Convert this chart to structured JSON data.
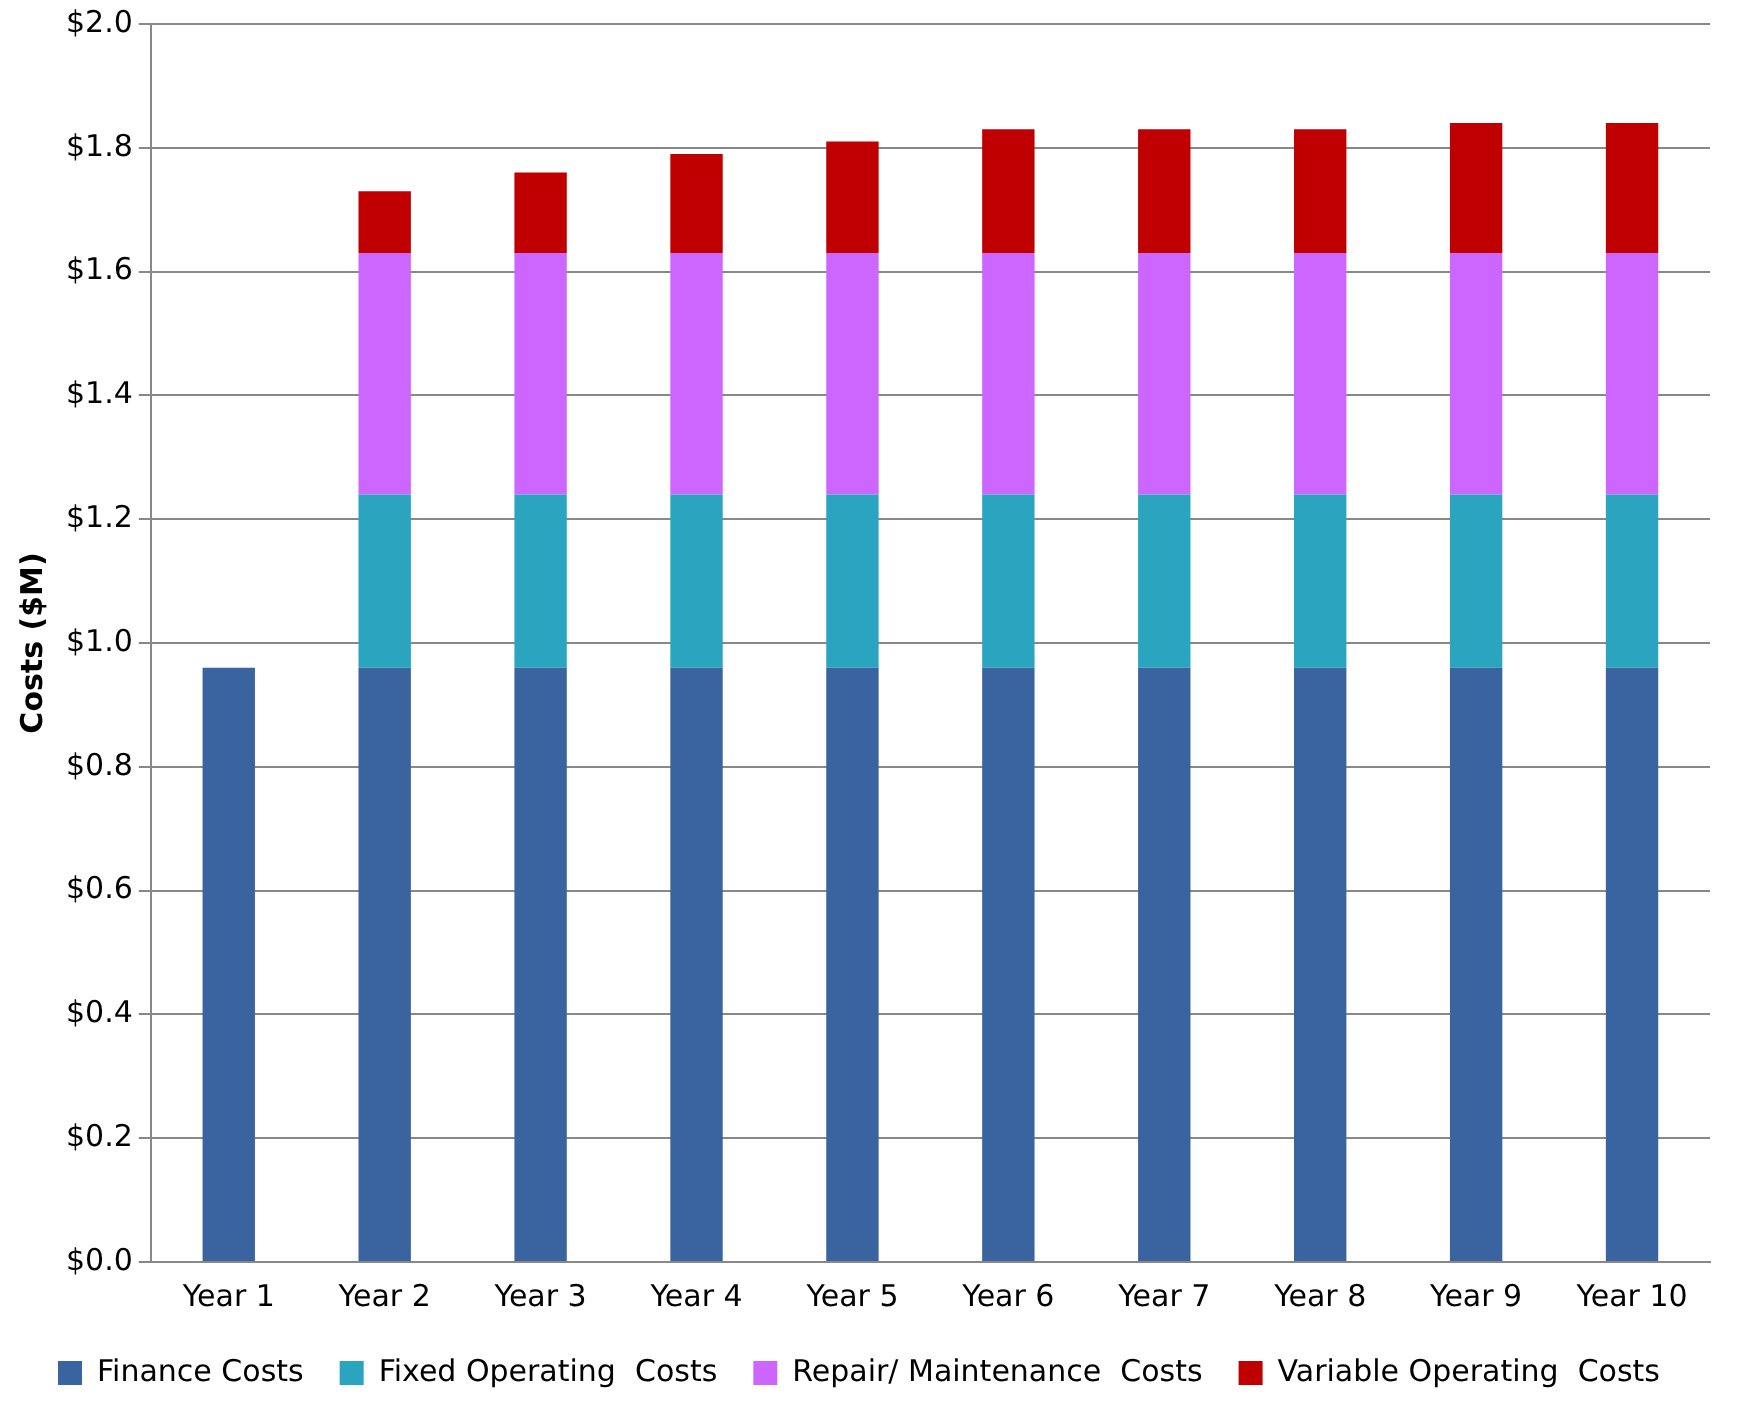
{
  "chart_data": {
    "type": "bar",
    "stacked": true,
    "ylabel": "Costs ($M)",
    "categories": [
      "Year 1",
      "Year 2",
      "Year 3",
      "Year 4",
      "Year 5",
      "Year 6",
      "Year 7",
      "Year 8",
      "Year 9",
      "Year 10"
    ],
    "series": [
      {
        "name": "Finance Costs",
        "color": "#3a64a0",
        "values": [
          0.96,
          0.96,
          0.96,
          0.96,
          0.96,
          0.96,
          0.96,
          0.96,
          0.96,
          0.96
        ]
      },
      {
        "name": "Fixed Operating  Costs",
        "color": "#2ba4c0",
        "values": [
          null,
          0.28,
          0.28,
          0.28,
          0.28,
          0.28,
          0.28,
          0.28,
          0.28,
          0.28
        ]
      },
      {
        "name": "Repair/ Maintenance  Costs",
        "color": "#cc66ff",
        "values": [
          null,
          0.39,
          0.39,
          0.39,
          0.39,
          0.39,
          0.39,
          0.39,
          0.39,
          0.39
        ]
      },
      {
        "name": "Variable Operating  Costs",
        "color": "#c00000",
        "values": [
          null,
          0.1,
          0.13,
          0.16,
          0.18,
          0.2,
          0.2,
          0.2,
          0.21,
          0.21
        ]
      }
    ],
    "ylim": [
      0,
      2
    ],
    "yticks": [
      {
        "value": 0,
        "label": "$0.0"
      },
      {
        "value": 0.2,
        "label": "$0.2"
      },
      {
        "value": 0.4,
        "label": "$0.4"
      },
      {
        "value": 0.6,
        "label": "$0.6"
      },
      {
        "value": 0.8,
        "label": "$0.8"
      },
      {
        "value": 1,
        "label": "$1.0"
      },
      {
        "value": 1.2,
        "label": "$1.2"
      },
      {
        "value": 1.4,
        "label": "$1.4"
      },
      {
        "value": 1.6,
        "label": "$1.6"
      },
      {
        "value": 1.8,
        "label": "$1.8"
      },
      {
        "value": 2,
        "label": "$2.0"
      }
    ],
    "grid": "y",
    "legend": "bottom"
  }
}
